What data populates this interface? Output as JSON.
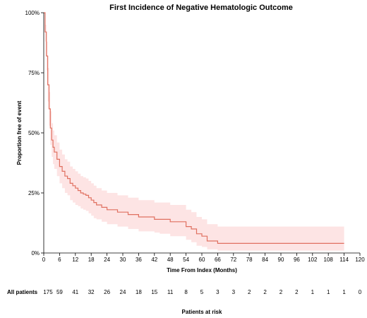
{
  "chart_data": {
    "type": "line",
    "title": "First Incidence of Negative Hematologic Outcome",
    "xlabel": "Time From Index (Months)",
    "ylabel": "Proportion free of event",
    "xlim": [
      0,
      120
    ],
    "ylim": [
      0,
      1
    ],
    "x_ticks": [
      0,
      6,
      12,
      18,
      24,
      30,
      36,
      42,
      48,
      54,
      60,
      66,
      72,
      78,
      84,
      90,
      96,
      102,
      108,
      114,
      120
    ],
    "y_ticks": [
      {
        "value": 0,
        "label": "0%"
      },
      {
        "value": 0.25,
        "label": "25%"
      },
      {
        "value": 0.5,
        "label": "50%"
      },
      {
        "value": 0.75,
        "label": "75%"
      },
      {
        "value": 1.0,
        "label": "100%"
      }
    ],
    "series_color": "#e07060",
    "band_color": "#fde4e4",
    "series": [
      {
        "x": [
          0,
          0.5,
          1,
          1.5,
          2,
          2.5,
          3,
          3.5,
          4,
          5,
          6,
          7,
          8,
          9,
          10,
          11,
          12,
          13,
          14,
          15,
          16,
          17,
          18,
          19,
          20,
          22,
          24,
          26,
          28,
          30,
          32,
          34,
          36,
          40,
          42,
          44,
          46,
          48,
          52,
          54,
          56,
          58,
          60,
          62,
          64,
          66,
          70,
          80,
          90,
          100,
          110,
          114
        ],
        "y": [
          1.0,
          0.92,
          0.82,
          0.7,
          0.6,
          0.52,
          0.47,
          0.44,
          0.42,
          0.39,
          0.36,
          0.34,
          0.32,
          0.31,
          0.29,
          0.28,
          0.27,
          0.26,
          0.25,
          0.245,
          0.24,
          0.23,
          0.22,
          0.21,
          0.2,
          0.19,
          0.18,
          0.18,
          0.17,
          0.17,
          0.16,
          0.16,
          0.15,
          0.15,
          0.14,
          0.14,
          0.14,
          0.13,
          0.13,
          0.11,
          0.1,
          0.08,
          0.07,
          0.05,
          0.05,
          0.04,
          0.04,
          0.04,
          0.04,
          0.04,
          0.04,
          0.04
        ],
        "lower": [
          1.0,
          0.88,
          0.76,
          0.63,
          0.53,
          0.45,
          0.4,
          0.37,
          0.35,
          0.32,
          0.29,
          0.27,
          0.25,
          0.24,
          0.22,
          0.21,
          0.2,
          0.195,
          0.185,
          0.18,
          0.175,
          0.165,
          0.155,
          0.145,
          0.14,
          0.13,
          0.12,
          0.12,
          0.11,
          0.11,
          0.1,
          0.1,
          0.09,
          0.09,
          0.085,
          0.08,
          0.08,
          0.07,
          0.07,
          0.055,
          0.045,
          0.03,
          0.025,
          0.015,
          0.015,
          0.01,
          0.01,
          0.01,
          0.01,
          0.01,
          0.01,
          0.01
        ],
        "upper": [
          1.0,
          0.95,
          0.88,
          0.77,
          0.67,
          0.59,
          0.54,
          0.51,
          0.49,
          0.46,
          0.43,
          0.41,
          0.39,
          0.38,
          0.36,
          0.35,
          0.34,
          0.33,
          0.32,
          0.315,
          0.31,
          0.3,
          0.29,
          0.28,
          0.27,
          0.26,
          0.25,
          0.25,
          0.24,
          0.24,
          0.23,
          0.23,
          0.22,
          0.22,
          0.21,
          0.21,
          0.21,
          0.2,
          0.2,
          0.18,
          0.17,
          0.15,
          0.14,
          0.12,
          0.12,
          0.11,
          0.11,
          0.11,
          0.11,
          0.11,
          0.11,
          0.11
        ]
      }
    ],
    "risk_table": {
      "row_label": "All patients",
      "x": [
        0,
        6,
        12,
        18,
        24,
        30,
        36,
        42,
        48,
        54,
        60,
        66,
        72,
        78,
        84,
        90,
        96,
        102,
        108,
        114,
        120
      ],
      "counts": [
        "175",
        "59",
        "41",
        "32",
        "26",
        "24",
        "18",
        "15",
        "11",
        "8",
        "5",
        "3",
        "3",
        "2",
        "2",
        "2",
        "2",
        "1",
        "1",
        "1",
        "0"
      ],
      "caption": "Patients at risk"
    }
  }
}
